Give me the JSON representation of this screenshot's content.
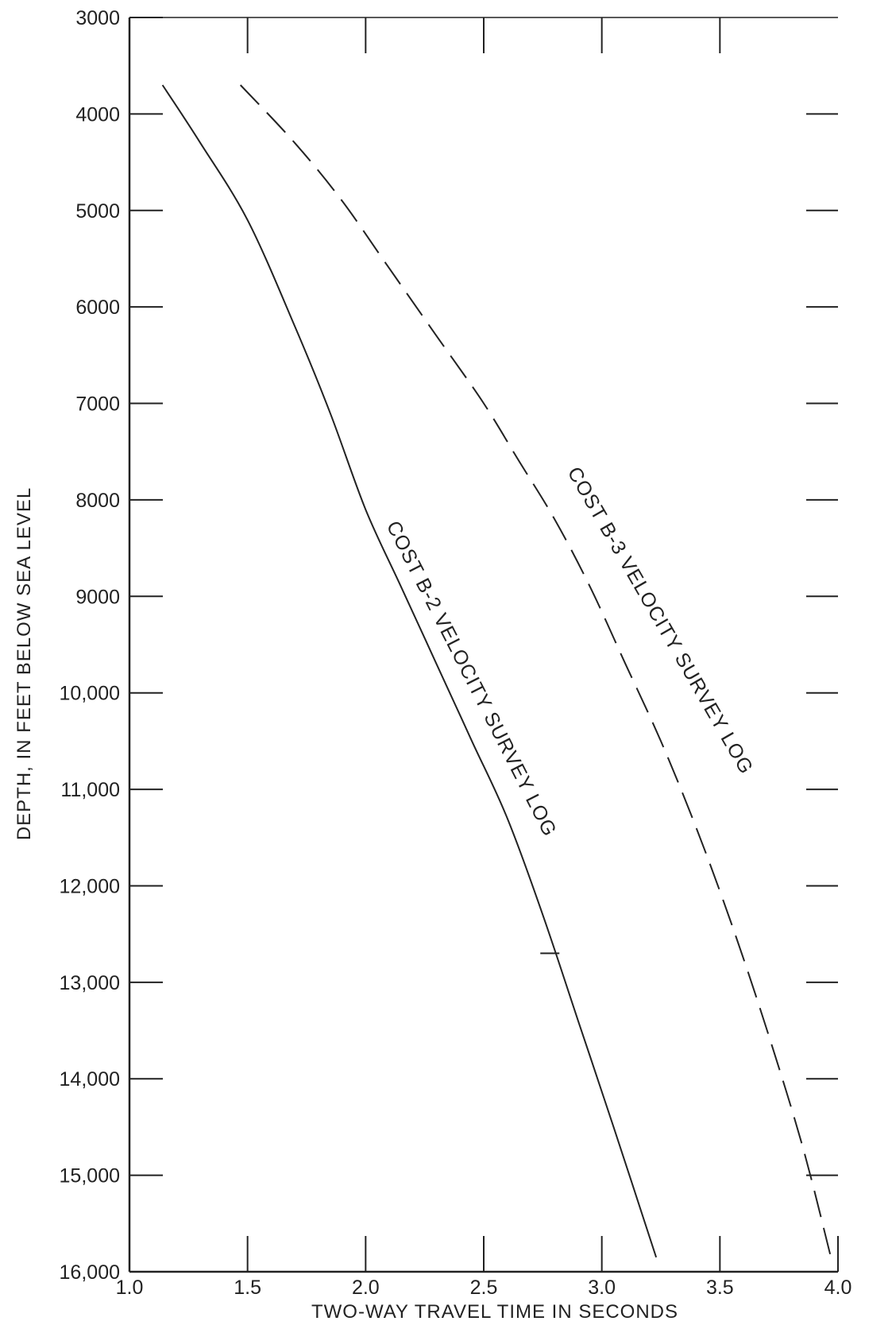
{
  "chart_data": {
    "type": "line",
    "xlabel": "TWO-WAY TRAVEL TIME IN SECONDS",
    "ylabel": "DEPTH, IN FEET BELOW SEA LEVEL",
    "xlim": [
      1.0,
      4.0
    ],
    "ylim": [
      3000,
      16000
    ],
    "y_inverted": true,
    "grid": false,
    "x_ticks": [
      {
        "value": 1.0,
        "label": "1.0"
      },
      {
        "value": 1.5,
        "label": "1.5"
      },
      {
        "value": 2.0,
        "label": "2.0"
      },
      {
        "value": 2.5,
        "label": "2.5"
      },
      {
        "value": 3.0,
        "label": "3.0"
      },
      {
        "value": 3.5,
        "label": "3.5"
      },
      {
        "value": 4.0,
        "label": "4.0"
      }
    ],
    "y_ticks": [
      {
        "value": 3000,
        "label": "3000"
      },
      {
        "value": 4000,
        "label": "4000"
      },
      {
        "value": 5000,
        "label": "5000"
      },
      {
        "value": 6000,
        "label": "6000"
      },
      {
        "value": 7000,
        "label": "7000"
      },
      {
        "value": 8000,
        "label": "8000"
      },
      {
        "value": 9000,
        "label": "9000"
      },
      {
        "value": 10000,
        "label": "10,000"
      },
      {
        "value": 11000,
        "label": "11,000"
      },
      {
        "value": 12000,
        "label": "12,000"
      },
      {
        "value": 13000,
        "label": "13,000"
      },
      {
        "value": 14000,
        "label": "14,000"
      },
      {
        "value": 15000,
        "label": "15,000"
      },
      {
        "value": 16000,
        "label": "16,000"
      }
    ],
    "series": [
      {
        "name": "COST B-2 VELOCITY SURVEY LOG",
        "style": "solid",
        "color": "#222222",
        "x": [
          1.14,
          1.3,
          1.5,
          1.7,
          1.85,
          2.0,
          2.15,
          2.3,
          2.45,
          2.6,
          2.75,
          2.9,
          3.05,
          3.23
        ],
        "y": [
          3700,
          4300,
          5100,
          6200,
          7100,
          8100,
          8900,
          9700,
          10500,
          11300,
          12300,
          13400,
          14500,
          15850
        ]
      },
      {
        "name": "COST B-3 VELOCITY SURVEY LOG",
        "style": "dashed",
        "color": "#222222",
        "x": [
          1.47,
          1.7,
          1.9,
          2.1,
          2.3,
          2.5,
          2.65,
          2.8,
          2.95,
          3.1,
          3.25,
          3.4,
          3.55,
          3.7,
          3.85,
          3.97
        ],
        "y": [
          3700,
          4300,
          4900,
          5600,
          6300,
          7000,
          7600,
          8200,
          8900,
          9700,
          10500,
          11400,
          12400,
          13500,
          14700,
          15850
        ]
      }
    ]
  }
}
